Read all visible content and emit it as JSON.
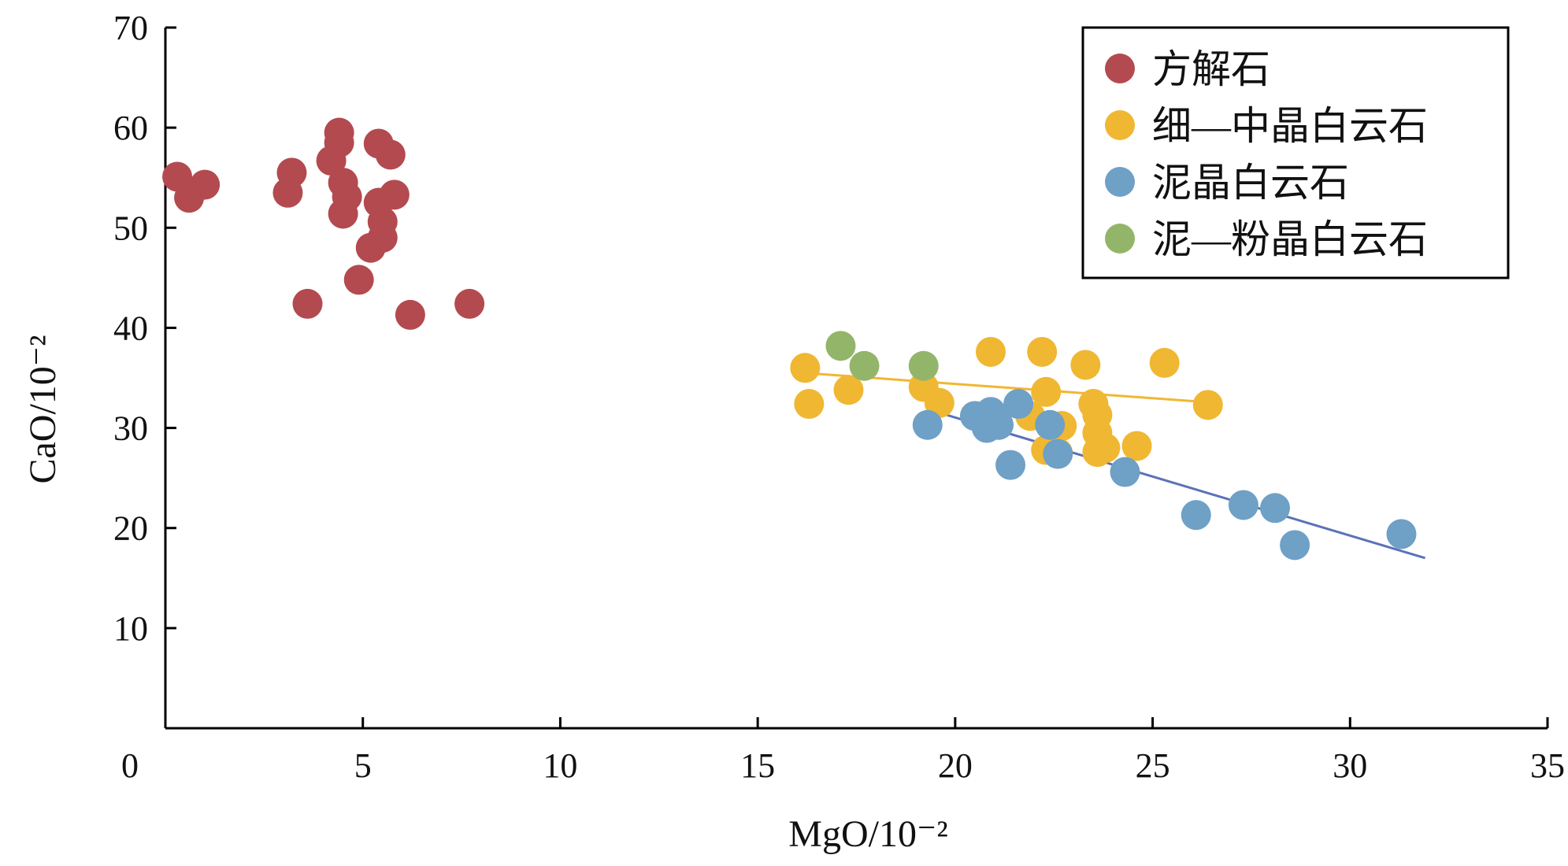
{
  "chart_data": {
    "type": "scatter",
    "xlabel": "MgO/10⁻²",
    "ylabel": "CaO/10⁻²",
    "xlim": [
      0,
      35
    ],
    "ylim": [
      0,
      70
    ],
    "xticks": [
      "0",
      "5",
      "10",
      "15",
      "20",
      "25",
      "30",
      "35"
    ],
    "yticks": [
      "10",
      "20",
      "30",
      "40",
      "50",
      "60",
      "70"
    ],
    "legend_position": "top-right",
    "grid": false,
    "series": [
      {
        "name": "方解石",
        "color": "#b34a4f",
        "points": [
          [
            0.3,
            55.1
          ],
          [
            0.6,
            53.0
          ],
          [
            1.0,
            54.3
          ],
          [
            3.1,
            53.5
          ],
          [
            3.2,
            55.5
          ],
          [
            3.6,
            42.4
          ],
          [
            4.2,
            56.7
          ],
          [
            4.4,
            59.5
          ],
          [
            4.4,
            58.5
          ],
          [
            4.5,
            54.5
          ],
          [
            4.6,
            53.1
          ],
          [
            4.5,
            51.4
          ],
          [
            4.9,
            44.8
          ],
          [
            5.2,
            48.0
          ],
          [
            5.4,
            52.5
          ],
          [
            5.5,
            49.0
          ],
          [
            5.5,
            50.6
          ],
          [
            5.4,
            58.4
          ],
          [
            5.7,
            57.3
          ],
          [
            5.8,
            53.3
          ],
          [
            6.2,
            41.3
          ],
          [
            7.7,
            42.4
          ]
        ]
      },
      {
        "name": "细—中晶白云石",
        "color": "#f0b732",
        "points": [
          [
            16.2,
            36.0
          ],
          [
            16.3,
            32.4
          ],
          [
            17.3,
            33.8
          ],
          [
            19.2,
            34.1
          ],
          [
            19.6,
            32.5
          ],
          [
            20.9,
            37.6
          ],
          [
            22.2,
            37.6
          ],
          [
            22.3,
            33.6
          ],
          [
            21.9,
            31.2
          ],
          [
            22.7,
            30.2
          ],
          [
            22.3,
            27.8
          ],
          [
            22.6,
            27.5
          ],
          [
            23.3,
            36.3
          ],
          [
            23.5,
            32.4
          ],
          [
            23.6,
            31.3
          ],
          [
            23.6,
            29.5
          ],
          [
            23.6,
            27.6
          ],
          [
            23.8,
            28.0
          ],
          [
            24.6,
            28.2
          ],
          [
            25.3,
            36.5
          ],
          [
            26.4,
            32.3
          ]
        ],
        "trend": [
          [
            16.5,
            35.4
          ],
          [
            26.3,
            32.6
          ]
        ]
      },
      {
        "name": "泥晶白云石",
        "color": "#6fa0c6",
        "points": [
          [
            19.3,
            30.3
          ],
          [
            20.5,
            31.2
          ],
          [
            20.8,
            30.0
          ],
          [
            20.9,
            31.6
          ],
          [
            21.1,
            30.3
          ],
          [
            21.4,
            26.3
          ],
          [
            21.6,
            32.4
          ],
          [
            22.4,
            30.3
          ],
          [
            22.6,
            27.4
          ],
          [
            24.3,
            25.6
          ],
          [
            26.1,
            21.3
          ],
          [
            27.3,
            22.3
          ],
          [
            28.1,
            22.0
          ],
          [
            28.6,
            18.3
          ],
          [
            31.3,
            19.4
          ]
        ],
        "trend": [
          [
            19.7,
            31.4
          ],
          [
            31.9,
            17.0
          ]
        ]
      },
      {
        "name": "泥—粉晶白云石",
        "color": "#93b56a",
        "points": [
          [
            17.1,
            38.2
          ],
          [
            17.7,
            36.2
          ],
          [
            19.2,
            36.2
          ]
        ]
      }
    ]
  }
}
